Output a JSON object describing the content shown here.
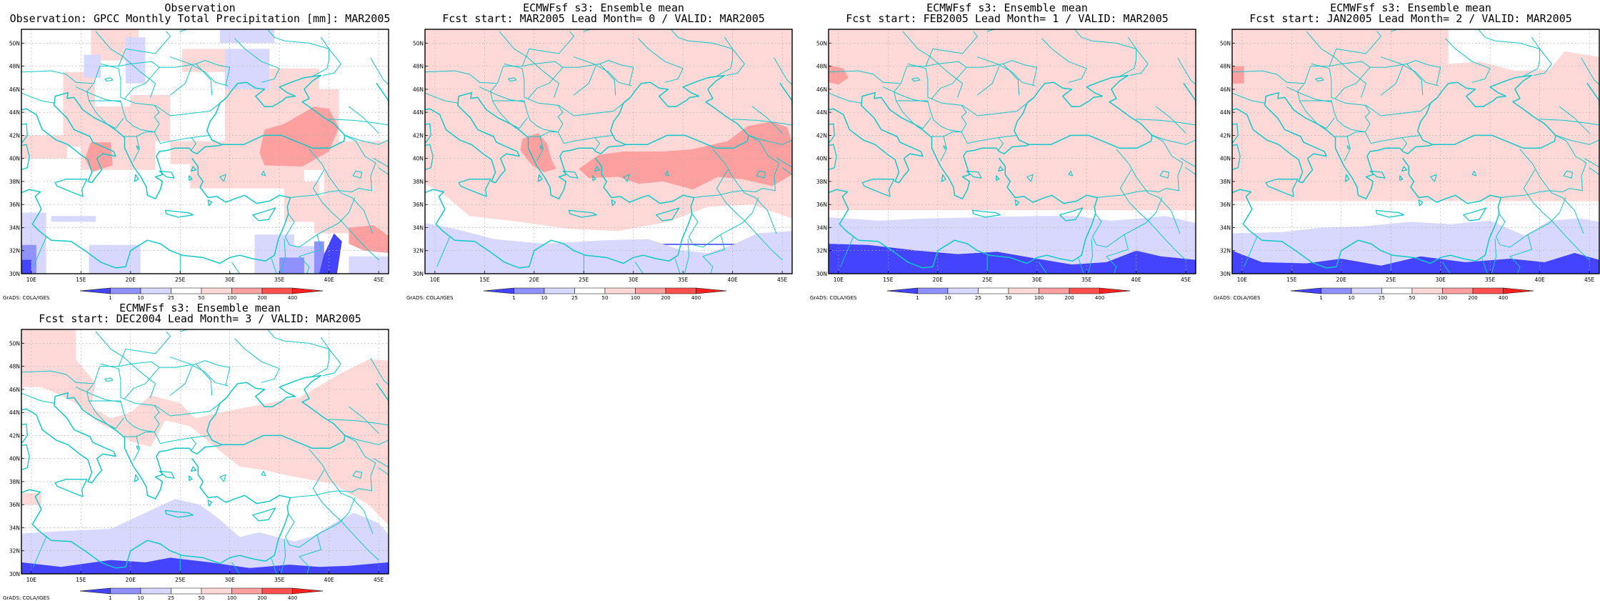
{
  "figure": {
    "credit": "GrADS: COLA/IGES",
    "lon_ticks": [
      "10E",
      "15E",
      "20E",
      "25E",
      "30E",
      "35E",
      "40E",
      "45E"
    ],
    "lat_ticks": [
      "30N",
      "32N",
      "34N",
      "36N",
      "38N",
      "40N",
      "42N",
      "44N",
      "46N",
      "48N",
      "50N"
    ],
    "colorbar": {
      "levels": [
        "1",
        "10",
        "25",
        "50",
        "100",
        "200",
        "400"
      ],
      "colors": [
        "#4444ff",
        "#9090ff",
        "#d8d8ff",
        "#ffffff",
        "#ffd8d8",
        "#ffa0a0",
        "#ff5050",
        "#ff2020"
      ]
    },
    "coastline_color": "#10c8c8"
  },
  "panels": [
    {
      "id": "observation",
      "title_line1": "Observation",
      "title_line2": "Observation: GPCC Monthly Total Precipitation [mm]: MAR2005"
    },
    {
      "id": "lead0",
      "title_line1": "ECMWFsf s3: Ensemble mean",
      "title_line2": "Fcst start: MAR2005  Lead Month= 0 / VALID: MAR2005"
    },
    {
      "id": "lead1",
      "title_line1": "ECMWFsf s3: Ensemble mean",
      "title_line2": "Fcst start: FEB2005  Lead Month= 1 / VALID: MAR2005"
    },
    {
      "id": "lead2",
      "title_line1": "ECMWFsf s3: Ensemble mean",
      "title_line2": "Fcst start: JAN2005  Lead Month= 2 / VALID: MAR2005"
    },
    {
      "id": "lead3",
      "title_line1": "ECMWFsf s3: Ensemble mean",
      "title_line2": "Fcst start: DEC2004  Lead Month= 3 / VALID: MAR2005"
    }
  ]
}
